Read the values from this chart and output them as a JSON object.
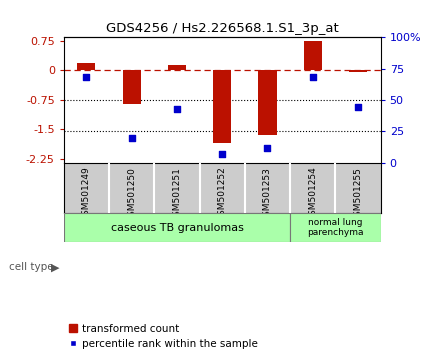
{
  "title": "GDS4256 / Hs2.226568.1.S1_3p_at",
  "samples": [
    "GSM501249",
    "GSM501250",
    "GSM501251",
    "GSM501252",
    "GSM501253",
    "GSM501254",
    "GSM501255"
  ],
  "bar_values": [
    0.2,
    -0.85,
    0.15,
    -1.85,
    -1.65,
    0.75,
    -0.05
  ],
  "percentile_values": [
    68,
    20,
    43,
    7,
    12,
    68,
    44
  ],
  "ylim_left": [
    -2.35,
    0.85
  ],
  "yticks_left": [
    0.75,
    0,
    -0.75,
    -1.5,
    -2.25
  ],
  "ytick_labels_left": [
    "0.75",
    "0",
    "-0.75",
    "-1.5",
    "-2.25"
  ],
  "yticks_right": [
    100,
    75,
    50,
    25,
    0
  ],
  "ytick_labels_right": [
    "100%",
    "75",
    "50",
    "25",
    "0"
  ],
  "bar_color": "#bb1100",
  "point_color": "#0000cc",
  "background_color": "#ffffff",
  "group1_label": "caseous TB granulomas",
  "group2_label": "normal lung\nparenchyma",
  "group1_indices": [
    0,
    1,
    2,
    3,
    4
  ],
  "group2_indices": [
    5,
    6
  ],
  "group_color": "#aaffaa",
  "sample_label_bg": "#cccccc",
  "legend_bar_label": "transformed count",
  "legend_point_label": "percentile rank within the sample",
  "cell_type_label": "cell type"
}
